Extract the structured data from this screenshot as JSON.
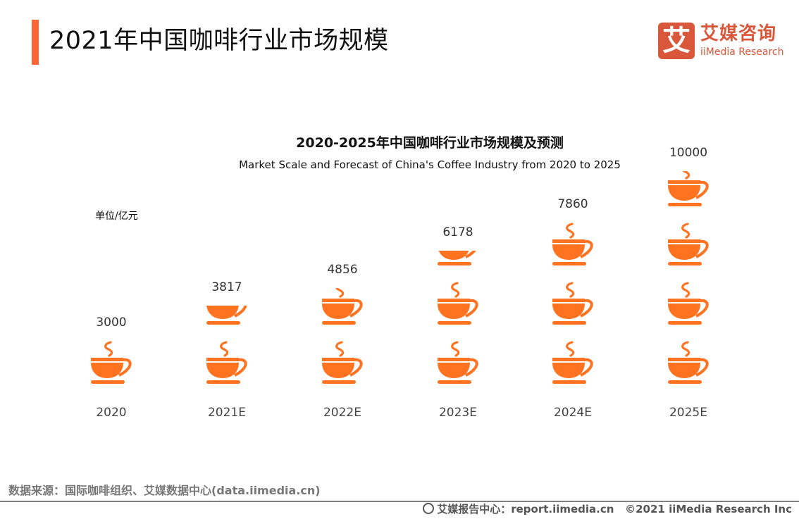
{
  "header": {
    "title": "2021年中国咖啡行业市场规模",
    "accent_color": "#ff6633"
  },
  "logo": {
    "glyph": "艾",
    "cn": "艾媒咨询",
    "en": "iiMedia Research",
    "color": "#d9573a"
  },
  "chart": {
    "title": "2020-2025年中国咖啡行业市场规模及预测",
    "subtitle": "Market Scale and Forecast of China's Coffee Industry from 2020 to 2025",
    "unit": "单位/亿元",
    "icon": "coffee-cup-icon",
    "icon_color": "#ff7320"
  },
  "chart_data": {
    "type": "bar",
    "style": "pictograph (stacked coffee-cup icons)",
    "title": "2020-2025年中国咖啡行业市场规模及预测",
    "subtitle": "Market Scale and Forecast of China's Coffee Industry from 2020 to 2025",
    "xlabel": "",
    "ylabel": "单位/亿元",
    "categories": [
      "2020",
      "2021E",
      "2022E",
      "2023E",
      "2024E",
      "2025E"
    ],
    "values": [
      3000,
      3817,
      4856,
      6178,
      7860,
      10000
    ],
    "grid": false,
    "legend": null
  },
  "footer": {
    "source": "数据来源：国际咖啡组织、艾媒数据中心(data.iimedia.cn)",
    "report_center": "艾媒报告中心：report.iimedia.cn",
    "copyright": "©2021  iiMedia Research  Inc"
  }
}
